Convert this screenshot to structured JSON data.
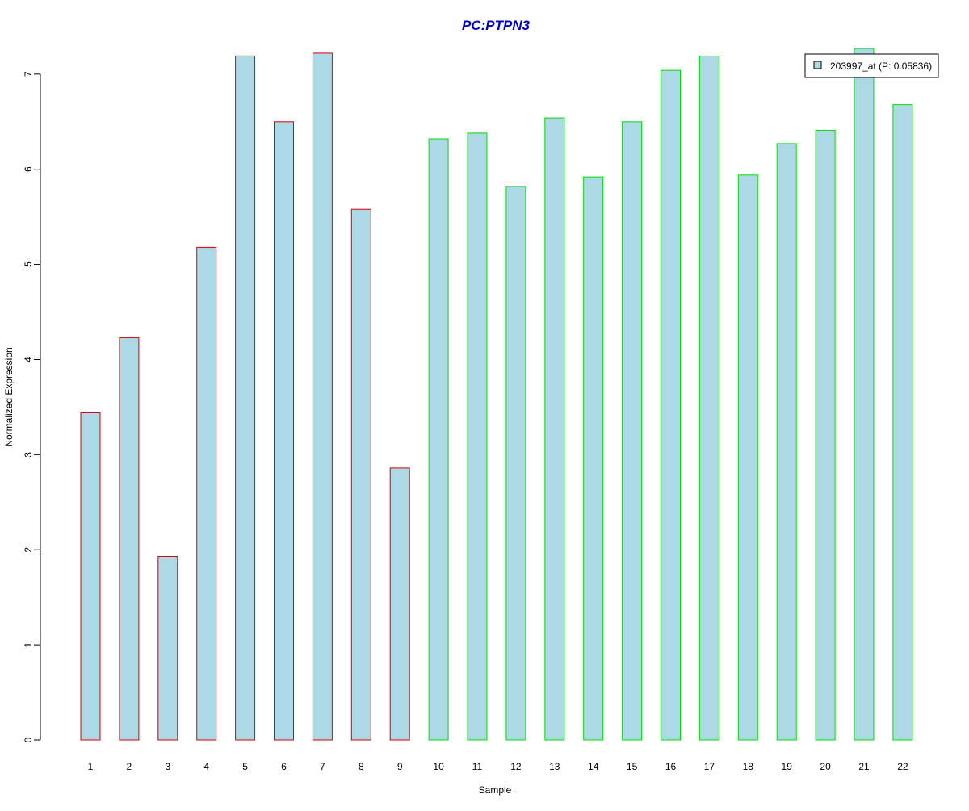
{
  "chart_data": {
    "type": "bar",
    "title": "PC:PTPN3",
    "xlabel": "Sample",
    "ylabel": "Normalized Expression",
    "categories": [
      "1",
      "2",
      "3",
      "4",
      "5",
      "6",
      "7",
      "8",
      "9",
      "10",
      "11",
      "12",
      "13",
      "14",
      "15",
      "16",
      "17",
      "18",
      "19",
      "20",
      "21",
      "22"
    ],
    "values": [
      3.44,
      4.23,
      1.93,
      5.18,
      7.19,
      6.5,
      7.22,
      5.58,
      2.86,
      6.32,
      6.38,
      5.82,
      6.54,
      5.92,
      6.5,
      7.04,
      7.19,
      5.94,
      6.27,
      6.41,
      7.27,
      6.68
    ],
    "groups": [
      "a",
      "a",
      "a",
      "a",
      "a",
      "a",
      "a",
      "a",
      "a",
      "b",
      "b",
      "b",
      "b",
      "b",
      "b",
      "b",
      "b",
      "b",
      "b",
      "b",
      "b",
      "b"
    ],
    "group_border_colors": {
      "a": "#dd0000",
      "b": "#00dd00"
    },
    "bar_fill": "#add8e6",
    "title_color": "#0000cc",
    "ylim": [
      0,
      7.27
    ],
    "yticks": [
      0,
      1,
      2,
      3,
      4,
      5,
      6,
      7
    ],
    "grid": false,
    "legend": {
      "position": "top-right",
      "entries": [
        {
          "label": "203997_at (P: 0.05836)",
          "fill": "#add8e6"
        }
      ]
    }
  }
}
